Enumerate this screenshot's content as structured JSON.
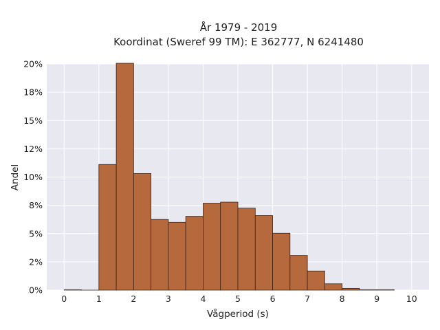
{
  "chart_data": {
    "type": "bar",
    "title_line1": "År 1979 - 2019",
    "title_line2": "Koordinat (Sweref 99 TM): E 362777, N 6241480",
    "xlabel": "Vågperiod (s)",
    "ylabel": "Andel",
    "bin_width": 0.5,
    "bins": [
      {
        "x0": 0.0,
        "x1": 0.5,
        "value": 0.0003
      },
      {
        "x0": 0.5,
        "x1": 1.0,
        "value": 0.0
      },
      {
        "x0": 1.0,
        "x1": 1.5,
        "value": 0.1111
      },
      {
        "x0": 1.5,
        "x1": 2.0,
        "value": 0.2006
      },
      {
        "x0": 2.0,
        "x1": 2.5,
        "value": 0.1031
      },
      {
        "x0": 2.5,
        "x1": 3.0,
        "value": 0.0625
      },
      {
        "x0": 3.0,
        "x1": 3.5,
        "value": 0.06
      },
      {
        "x0": 3.5,
        "x1": 4.0,
        "value": 0.0653
      },
      {
        "x0": 4.0,
        "x1": 4.5,
        "value": 0.0769
      },
      {
        "x0": 4.5,
        "x1": 5.0,
        "value": 0.0778
      },
      {
        "x0": 5.0,
        "x1": 5.5,
        "value": 0.0725
      },
      {
        "x0": 5.5,
        "x1": 6.0,
        "value": 0.0659
      },
      {
        "x0": 6.0,
        "x1": 6.5,
        "value": 0.0503
      },
      {
        "x0": 6.5,
        "x1": 7.0,
        "value": 0.0306
      },
      {
        "x0": 7.0,
        "x1": 7.5,
        "value": 0.0169
      },
      {
        "x0": 7.5,
        "x1": 8.0,
        "value": 0.0056
      },
      {
        "x0": 8.0,
        "x1": 8.5,
        "value": 0.0016
      },
      {
        "x0": 8.5,
        "x1": 9.0,
        "value": 0.0003
      },
      {
        "x0": 9.0,
        "x1": 9.5,
        "value": 0.0003
      }
    ],
    "xlim": [
      -0.5,
      10.5
    ],
    "ylim": [
      0,
      0.2
    ],
    "x_ticks": [
      0,
      1,
      2,
      3,
      4,
      5,
      6,
      7,
      8,
      9,
      10
    ],
    "x_tick_labels": [
      "0",
      "1",
      "2",
      "3",
      "4",
      "5",
      "6",
      "7",
      "8",
      "9",
      "10"
    ],
    "y_ticks": [
      0,
      0.025,
      0.05,
      0.075,
      0.1,
      0.125,
      0.15,
      0.175,
      0.2
    ],
    "y_tick_labels": [
      "0%",
      "2%",
      "5%",
      "8%",
      "10%",
      "12%",
      "15%",
      "18%",
      "20%"
    ],
    "grid": true,
    "colors": {
      "bar_fill": "#b5693d",
      "bar_stroke": "#3a2418",
      "plot_background": "#e8e8f1",
      "grid": "#ffffff"
    }
  }
}
